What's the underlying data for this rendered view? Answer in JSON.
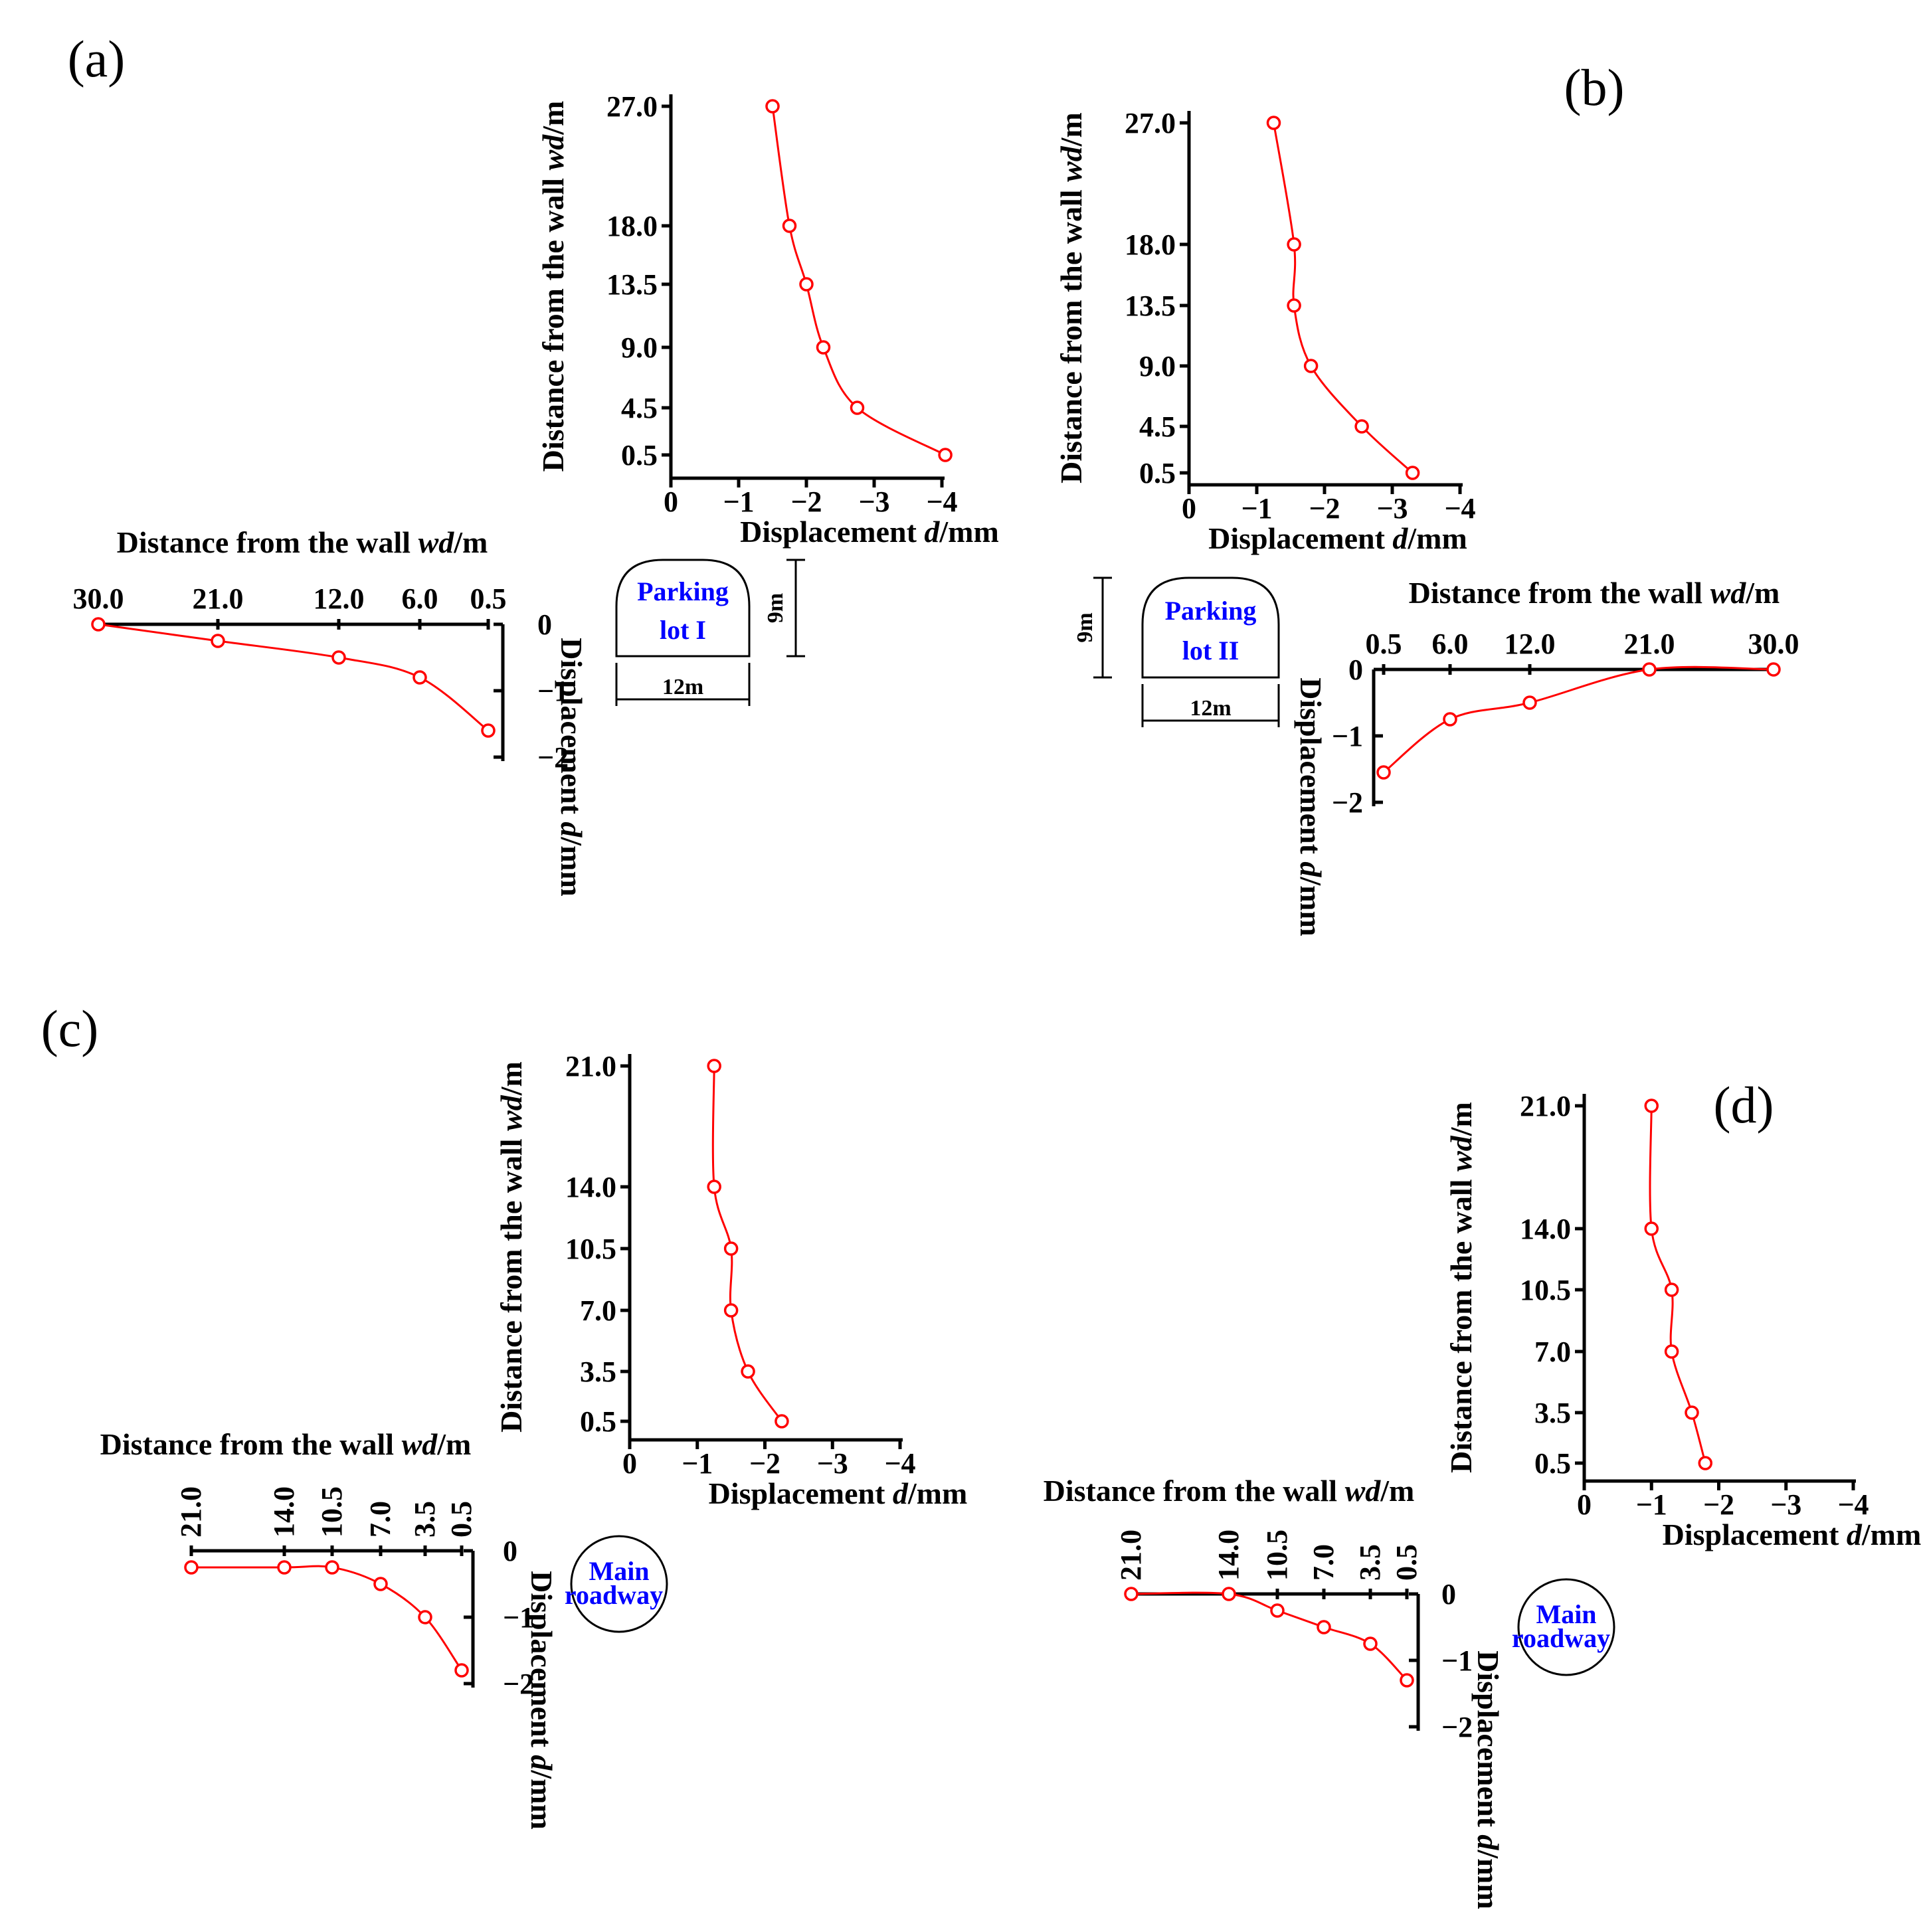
{
  "colors": {
    "series": "#ff0000",
    "axis": "#000000",
    "schematic_text": "#0000ff"
  },
  "panels": [
    {
      "label": "(a)",
      "schematic": {
        "lines": [
          "Parking",
          "lot I"
        ],
        "width_label": "12m",
        "height_label": "9m"
      },
      "roof": {
        "xlabel": "Displacement d/mm",
        "ylabel": "Distance from the wall wd/m",
        "xticks": [
          0,
          -1,
          -2,
          -3,
          -4
        ],
        "xtick_labels": [
          "0",
          "−1",
          "−2",
          "−3",
          "−4"
        ],
        "yticks": [
          0.5,
          4.5,
          9.0,
          13.5,
          18.0,
          27.0
        ],
        "ytick_labels": [
          "0.5",
          "4.5",
          "9.0",
          "13.5",
          "18.0",
          "27.0"
        ],
        "points": [
          [
            -4.05,
            0.5
          ],
          [
            -2.75,
            4.5
          ],
          [
            -2.25,
            9.0
          ],
          [
            -2.0,
            13.5
          ],
          [
            -1.75,
            18.0
          ],
          [
            -1.5,
            27.0
          ]
        ]
      },
      "side": {
        "xlabel": "Distance from the wall wd/m",
        "ylabel": "Displacement d/mm",
        "xtick_labels": [
          "30.0",
          "21.0",
          "12.0",
          "6.0",
          "0.5"
        ],
        "ytick_labels": [
          "0",
          "−1",
          "−2"
        ],
        "points": [
          [
            30.0,
            0
          ],
          [
            21.0,
            -0.25
          ],
          [
            12.0,
            -0.5
          ],
          [
            6.0,
            -0.8
          ],
          [
            0.5,
            -1.6
          ]
        ]
      }
    },
    {
      "label": "(b)",
      "schematic": {
        "lines": [
          "Parking",
          "lot II"
        ],
        "width_label": "12m",
        "height_label": "9m"
      },
      "roof": {
        "xlabel": "Displacement  d/mm",
        "ylabel": "Distance from the wall wd/m",
        "xticks": [
          0,
          -1,
          -2,
          -3,
          -4
        ],
        "xtick_labels": [
          "0",
          "−1",
          "−2",
          "−3",
          "−4"
        ],
        "yticks": [
          0.5,
          4.5,
          9.0,
          13.5,
          18.0,
          27.0
        ],
        "ytick_labels": [
          "0.5",
          "4.5",
          "9.0",
          "13.5",
          "18.0",
          "27.0"
        ],
        "points": [
          [
            -3.3,
            0.5
          ],
          [
            -2.55,
            4.5
          ],
          [
            -1.8,
            9.0
          ],
          [
            -1.55,
            13.5
          ],
          [
            -1.55,
            18.0
          ],
          [
            -1.25,
            27.0
          ]
        ]
      },
      "side": {
        "xlabel": "Distance from the wall wd/m",
        "ylabel": "Displacement d/mm",
        "xtick_labels": [
          "0.5",
          "6.0",
          "12.0",
          "21.0",
          "30.0"
        ],
        "ytick_labels": [
          "0",
          "−1",
          "−2"
        ],
        "points": [
          [
            0.5,
            -1.55
          ],
          [
            6.0,
            -0.75
          ],
          [
            12.0,
            -0.5
          ],
          [
            21.0,
            0
          ],
          [
            30.0,
            0
          ]
        ]
      }
    },
    {
      "label": "(c)",
      "schematic": {
        "lines": [
          "Main",
          "roadway"
        ]
      },
      "roof": {
        "xlabel": "Displacement d/mm",
        "ylabel": "Distance from the wall wd/m",
        "xticks": [
          0,
          -1,
          -2,
          -3,
          -4
        ],
        "xtick_labels": [
          "0",
          "−1",
          "−2",
          "−3",
          "−4"
        ],
        "yticks": [
          0.5,
          3.5,
          7.0,
          10.5,
          14.0,
          21.0
        ],
        "ytick_labels": [
          "0.5",
          "3.5",
          "7.0",
          "10.5",
          "14.0",
          "21.0"
        ],
        "points": [
          [
            -2.25,
            0.5
          ],
          [
            -1.75,
            3.5
          ],
          [
            -1.5,
            7.0
          ],
          [
            -1.5,
            10.5
          ],
          [
            -1.25,
            14.0
          ],
          [
            -1.25,
            21.0
          ]
        ]
      },
      "side": {
        "xlabel": "Distance from the wall wd/m",
        "ylabel": "Displacement d/mm",
        "xtick_labels": [
          "21.0",
          "14.0",
          "10.5",
          "7.0",
          "3.5",
          "0.5"
        ],
        "ytick_labels": [
          "0",
          "−1",
          "−2"
        ],
        "points": [
          [
            21.0,
            -0.25
          ],
          [
            14.0,
            -0.25
          ],
          [
            10.5,
            -0.25
          ],
          [
            7.0,
            -0.5
          ],
          [
            3.5,
            -1.0
          ],
          [
            0.5,
            -1.8
          ]
        ]
      }
    },
    {
      "label": "(d)",
      "schematic": {
        "lines": [
          "Main",
          "roadway"
        ]
      },
      "roof": {
        "xlabel": "Displacement d/mm",
        "ylabel": "Distance from the wall wd/m",
        "xticks": [
          0,
          -1,
          -2,
          -3,
          -4
        ],
        "xtick_labels": [
          "0",
          "−1",
          "−2",
          "−3",
          "−4"
        ],
        "yticks": [
          0.5,
          3.5,
          7.0,
          10.5,
          14.0,
          21.0
        ],
        "ytick_labels": [
          "0.5",
          "3.5",
          "7.0",
          "10.5",
          "14.0",
          "21.0"
        ],
        "points": [
          [
            -1.8,
            0.5
          ],
          [
            -1.6,
            3.5
          ],
          [
            -1.3,
            7.0
          ],
          [
            -1.3,
            10.5
          ],
          [
            -1.0,
            14.0
          ],
          [
            -1.0,
            21.0
          ]
        ]
      },
      "side": {
        "xlabel": "Distance from the wall wd/m",
        "ylabel": "Displacement d/mm",
        "xtick_labels": [
          "21.0",
          "14.0",
          "10.5",
          "7.0",
          "3.5",
          "0.5"
        ],
        "ytick_labels": [
          "0",
          "−1",
          "−2"
        ],
        "points": [
          [
            21.0,
            0
          ],
          [
            14.0,
            0
          ],
          [
            10.5,
            -0.25
          ],
          [
            7.0,
            -0.5
          ],
          [
            3.5,
            -0.75
          ],
          [
            0.5,
            -1.3
          ]
        ]
      }
    }
  ],
  "chart_data": [
    {
      "type": "line",
      "panel": "(a)",
      "chart": "roof",
      "xlabel": "Displacement d/mm",
      "ylabel": "Distance from the wall wd/m",
      "x": [
        -4.05,
        -2.75,
        -2.25,
        -2.0,
        -1.75,
        -1.5
      ],
      "y": [
        0.5,
        4.5,
        9.0,
        13.5,
        18.0,
        27.0
      ],
      "xlim": [
        0,
        -4
      ]
    },
    {
      "type": "line",
      "panel": "(a)",
      "chart": "side",
      "xlabel": "Distance from the wall wd/m",
      "ylabel": "Displacement d/mm",
      "x": [
        30.0,
        21.0,
        12.0,
        6.0,
        0.5
      ],
      "y": [
        0,
        -0.25,
        -0.5,
        -0.8,
        -1.6
      ],
      "ylim": [
        0,
        -2
      ]
    },
    {
      "type": "line",
      "panel": "(b)",
      "chart": "roof",
      "xlabel": "Displacement  d/mm",
      "ylabel": "Distance from the wall wd/m",
      "x": [
        -3.3,
        -2.55,
        -1.8,
        -1.55,
        -1.55,
        -1.25
      ],
      "y": [
        0.5,
        4.5,
        9.0,
        13.5,
        18.0,
        27.0
      ],
      "xlim": [
        0,
        -4
      ]
    },
    {
      "type": "line",
      "panel": "(b)",
      "chart": "side",
      "xlabel": "Distance from the wall wd/m",
      "ylabel": "Displacement d/mm",
      "x": [
        0.5,
        6.0,
        12.0,
        21.0,
        30.0
      ],
      "y": [
        -1.55,
        -0.75,
        -0.5,
        0,
        0
      ],
      "ylim": [
        0,
        -2
      ]
    },
    {
      "type": "line",
      "panel": "(c)",
      "chart": "roof",
      "xlabel": "Displacement d/mm",
      "ylabel": "Distance from the wall wd/m",
      "x": [
        -2.25,
        -1.75,
        -1.5,
        -1.5,
        -1.25,
        -1.25
      ],
      "y": [
        0.5,
        3.5,
        7.0,
        10.5,
        14.0,
        21.0
      ],
      "xlim": [
        0,
        -4
      ]
    },
    {
      "type": "line",
      "panel": "(c)",
      "chart": "side",
      "xlabel": "Distance from the wall wd/m",
      "ylabel": "Displacement d/mm",
      "x": [
        21.0,
        14.0,
        10.5,
        7.0,
        3.5,
        0.5
      ],
      "y": [
        -0.25,
        -0.25,
        -0.25,
        -0.5,
        -1.0,
        -1.8
      ],
      "ylim": [
        0,
        -2
      ]
    },
    {
      "type": "line",
      "panel": "(d)",
      "chart": "roof",
      "xlabel": "Displacement d/mm",
      "ylabel": "Distance from the wall wd/m",
      "x": [
        -1.8,
        -1.6,
        -1.3,
        -1.3,
        -1.0,
        -1.0
      ],
      "y": [
        0.5,
        3.5,
        7.0,
        10.5,
        14.0,
        21.0
      ],
      "xlim": [
        0,
        -4
      ]
    },
    {
      "type": "line",
      "panel": "(d)",
      "chart": "side",
      "xlabel": "Distance from the wall wd/m",
      "ylabel": "Displacement d/mm",
      "x": [
        21.0,
        14.0,
        10.5,
        7.0,
        3.5,
        0.5
      ],
      "y": [
        0,
        0,
        -0.25,
        -0.5,
        -0.75,
        -1.3
      ],
      "ylim": [
        0,
        -2
      ]
    }
  ]
}
